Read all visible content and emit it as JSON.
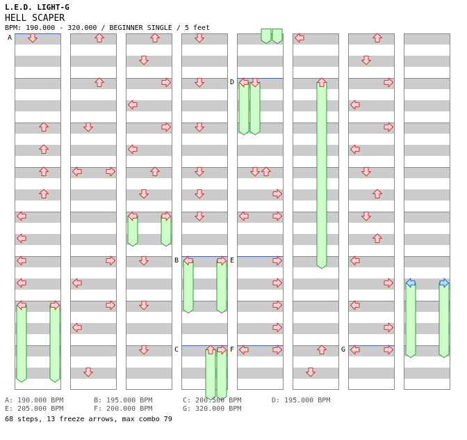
{
  "song": {
    "title": "L.E.D. LIGHT-G",
    "subtitle": "HELL SCAPER",
    "bpm_line": "BPM: 190.000 - 320.000 / BEGINNER SINGLE / 5 feet"
  },
  "colors": {
    "stripe": "#cccccc",
    "arrow_fill": "#ffd6d6",
    "arrow_stroke": "#cc3333",
    "arrow_fill_blue": "#b7dcff",
    "arrow_stroke_blue": "#2266cc",
    "freeze_fill": "#ccffcc",
    "freeze_stroke": "#339933",
    "bpm_change_line": "#3366cc"
  },
  "chart_data": {
    "type": "step-chart",
    "columns": 8,
    "measures_per_column": 8,
    "lanes": [
      "left",
      "down",
      "up",
      "right"
    ],
    "notes": [
      {
        "col": 0,
        "t": 0.1,
        "lane": "down"
      },
      {
        "col": 0,
        "t": 2.1,
        "lane": "up"
      },
      {
        "col": 0,
        "t": 2.6,
        "lane": "up"
      },
      {
        "col": 0,
        "t": 3.1,
        "lane": "up"
      },
      {
        "col": 0,
        "t": 3.6,
        "lane": "up"
      },
      {
        "col": 0,
        "t": 4.1,
        "lane": "left"
      },
      {
        "col": 0,
        "t": 4.6,
        "lane": "left"
      },
      {
        "col": 0,
        "t": 5.1,
        "lane": "left"
      },
      {
        "col": 0,
        "t": 5.6,
        "lane": "left"
      },
      {
        "col": 0,
        "t": 6.1,
        "lane": "left"
      },
      {
        "col": 0,
        "t": 6.1,
        "lane": "right"
      },
      {
        "col": 1,
        "t": 0.1,
        "lane": "up"
      },
      {
        "col": 1,
        "t": 1.1,
        "lane": "up"
      },
      {
        "col": 1,
        "t": 2.1,
        "lane": "down"
      },
      {
        "col": 1,
        "t": 3.1,
        "lane": "left"
      },
      {
        "col": 1,
        "t": 3.1,
        "lane": "right"
      },
      {
        "col": 1,
        "t": 5.1,
        "lane": "right"
      },
      {
        "col": 1,
        "t": 5.6,
        "lane": "left"
      },
      {
        "col": 1,
        "t": 6.1,
        "lane": "right"
      },
      {
        "col": 1,
        "t": 6.6,
        "lane": "left"
      },
      {
        "col": 1,
        "t": 7.6,
        "lane": "down"
      },
      {
        "col": 2,
        "t": 0.1,
        "lane": "up"
      },
      {
        "col": 2,
        "t": 0.6,
        "lane": "down"
      },
      {
        "col": 2,
        "t": 1.1,
        "lane": "right"
      },
      {
        "col": 2,
        "t": 1.6,
        "lane": "left"
      },
      {
        "col": 2,
        "t": 2.1,
        "lane": "right"
      },
      {
        "col": 2,
        "t": 2.6,
        "lane": "left"
      },
      {
        "col": 2,
        "t": 3.1,
        "lane": "up"
      },
      {
        "col": 2,
        "t": 3.6,
        "lane": "down"
      },
      {
        "col": 2,
        "t": 4.1,
        "lane": "left"
      },
      {
        "col": 2,
        "t": 4.1,
        "lane": "right"
      },
      {
        "col": 2,
        "t": 5.1,
        "lane": "down"
      },
      {
        "col": 2,
        "t": 6.1,
        "lane": "down"
      },
      {
        "col": 2,
        "t": 7.1,
        "lane": "down"
      },
      {
        "col": 3,
        "t": 0.1,
        "lane": "down"
      },
      {
        "col": 3,
        "t": 1.1,
        "lane": "down"
      },
      {
        "col": 3,
        "t": 2.1,
        "lane": "down"
      },
      {
        "col": 3,
        "t": 3.1,
        "lane": "down"
      },
      {
        "col": 3,
        "t": 3.6,
        "lane": "down"
      },
      {
        "col": 3,
        "t": 4.1,
        "lane": "down"
      },
      {
        "col": 3,
        "t": 5.1,
        "lane": "left"
      },
      {
        "col": 3,
        "t": 5.1,
        "lane": "right"
      },
      {
        "col": 3,
        "t": 7.1,
        "lane": "up"
      },
      {
        "col": 3,
        "t": 7.1,
        "lane": "right"
      },
      {
        "col": 4,
        "t": 1.1,
        "lane": "left"
      },
      {
        "col": 4,
        "t": 1.1,
        "lane": "down"
      },
      {
        "col": 4,
        "t": 3.1,
        "lane": "down"
      },
      {
        "col": 4,
        "t": 3.1,
        "lane": "up"
      },
      {
        "col": 4,
        "t": 3.6,
        "lane": "right"
      },
      {
        "col": 4,
        "t": 4.1,
        "lane": "left"
      },
      {
        "col": 4,
        "t": 4.1,
        "lane": "right"
      },
      {
        "col": 4,
        "t": 5.1,
        "lane": "right"
      },
      {
        "col": 4,
        "t": 5.6,
        "lane": "right"
      },
      {
        "col": 4,
        "t": 6.1,
        "lane": "right"
      },
      {
        "col": 4,
        "t": 6.6,
        "lane": "right"
      },
      {
        "col": 4,
        "t": 7.1,
        "lane": "left"
      },
      {
        "col": 4,
        "t": 7.1,
        "lane": "right"
      },
      {
        "col": 5,
        "t": 0.1,
        "lane": "left"
      },
      {
        "col": 5,
        "t": 1.1,
        "lane": "up"
      },
      {
        "col": 5,
        "t": 7.1,
        "lane": "up"
      },
      {
        "col": 5,
        "t": 7.6,
        "lane": "down"
      },
      {
        "col": 6,
        "t": 0.1,
        "lane": "up"
      },
      {
        "col": 6,
        "t": 0.6,
        "lane": "down"
      },
      {
        "col": 6,
        "t": 1.1,
        "lane": "right"
      },
      {
        "col": 6,
        "t": 1.6,
        "lane": "left"
      },
      {
        "col": 6,
        "t": 2.1,
        "lane": "right"
      },
      {
        "col": 6,
        "t": 2.6,
        "lane": "left"
      },
      {
        "col": 6,
        "t": 3.1,
        "lane": "down"
      },
      {
        "col": 6,
        "t": 3.6,
        "lane": "up"
      },
      {
        "col": 6,
        "t": 4.1,
        "lane": "down"
      },
      {
        "col": 6,
        "t": 4.6,
        "lane": "up"
      },
      {
        "col": 6,
        "t": 5.1,
        "lane": "left"
      },
      {
        "col": 6,
        "t": 5.6,
        "lane": "right"
      },
      {
        "col": 6,
        "t": 6.1,
        "lane": "left"
      },
      {
        "col": 6,
        "t": 6.6,
        "lane": "right"
      },
      {
        "col": 6,
        "t": 7.1,
        "lane": "left"
      },
      {
        "col": 6,
        "t": 7.1,
        "lane": "right"
      },
      {
        "col": 7,
        "t": 5.6,
        "lane": "left",
        "color": "blue"
      },
      {
        "col": 7,
        "t": 5.6,
        "lane": "right",
        "color": "blue"
      }
    ],
    "freezes": [
      {
        "col": 0,
        "t1": 6.1,
        "t2": 7.75,
        "lane": "left"
      },
      {
        "col": 0,
        "t1": 6.1,
        "t2": 7.75,
        "lane": "right"
      },
      {
        "col": 2,
        "t1": 4.1,
        "t2": 4.7,
        "lane": "left"
      },
      {
        "col": 2,
        "t1": 4.1,
        "t2": 4.7,
        "lane": "right"
      },
      {
        "col": 3,
        "t1": 5.1,
        "t2": 6.2,
        "lane": "left"
      },
      {
        "col": 3,
        "t1": 5.1,
        "t2": 6.2,
        "lane": "right"
      },
      {
        "col": 3,
        "t1": 7.1,
        "t2": 8.15,
        "lane": "up"
      },
      {
        "col": 3,
        "t1": 7.1,
        "t2": 8.15,
        "lane": "right"
      },
      {
        "col": 4,
        "t1": -0.1,
        "t2": 0.15,
        "lane": "up"
      },
      {
        "col": 4,
        "t1": -0.1,
        "t2": 0.15,
        "lane": "right"
      },
      {
        "col": 4,
        "t1": 1.1,
        "t2": 2.2,
        "lane": "left"
      },
      {
        "col": 4,
        "t1": 1.1,
        "t2": 2.2,
        "lane": "down"
      },
      {
        "col": 5,
        "t1": 1.1,
        "t2": 5.2,
        "lane": "up"
      },
      {
        "col": 7,
        "t1": 5.6,
        "t2": 7.2,
        "lane": "left"
      },
      {
        "col": 7,
        "t1": 5.6,
        "t2": 7.2,
        "lane": "right"
      }
    ],
    "bpm_markers": [
      {
        "col": 0,
        "t": 0,
        "label": "A"
      },
      {
        "col": 4,
        "t": 1,
        "label": "D"
      },
      {
        "col": 3,
        "t": 5,
        "label": "B"
      },
      {
        "col": 4,
        "t": 5,
        "label": "E"
      },
      {
        "col": 3,
        "t": 7,
        "label": "C"
      },
      {
        "col": 4,
        "t": 7,
        "label": "F"
      },
      {
        "col": 6,
        "t": 7,
        "label": "G"
      }
    ]
  },
  "legend": {
    "A": "A: 190.000 BPM",
    "B": "B: 195.000 BPM",
    "C": "C: 200.500 BPM",
    "D": "D: 195.000 BPM",
    "E": "E: 205.000 BPM",
    "F": "F: 200.000 BPM",
    "G": "G: 320.000 BPM"
  },
  "stats": "68 steps, 13 freeze arrows, max combo 79"
}
